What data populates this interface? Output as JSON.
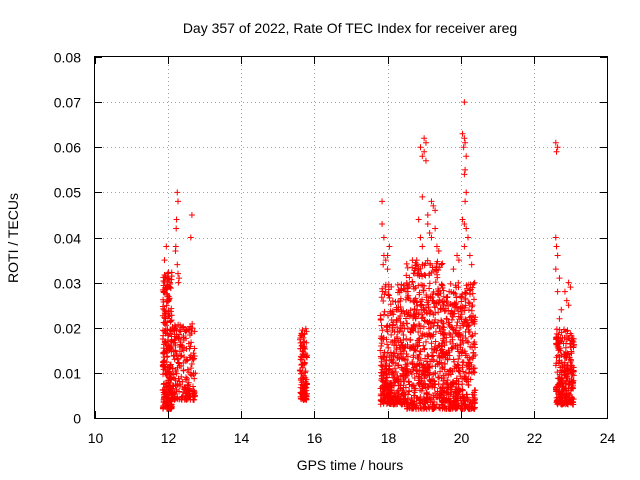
{
  "chart_data": {
    "type": "scatter",
    "title": "Day 357 of 2022, Rate Of TEC Index for receiver areg",
    "xlabel": "GPS time / hours",
    "ylabel": "ROTI / TECUs",
    "xlim": [
      10,
      24
    ],
    "ylim": [
      0,
      0.08
    ],
    "x_ticks": [
      "10",
      "12",
      "14",
      "16",
      "18",
      "20",
      "22",
      "24"
    ],
    "y_ticks": [
      "0",
      "0.01",
      "0.02",
      "0.03",
      "0.04",
      "0.05",
      "0.06",
      "0.07",
      "0.08"
    ],
    "grid": true,
    "marker": "+",
    "series_color": "#ff0000",
    "clusters": [
      {
        "x_start": 11.85,
        "x_end": 12.1,
        "y_min": 0.002,
        "y_max": 0.033,
        "count": 260
      },
      {
        "x_start": 12.1,
        "x_end": 12.75,
        "y_min": 0.004,
        "y_max": 0.021,
        "count": 200
      },
      {
        "x_start": 15.6,
        "x_end": 15.8,
        "y_min": 0.004,
        "y_max": 0.02,
        "count": 110
      },
      {
        "x_start": 17.8,
        "x_end": 18.5,
        "y_min": 0.003,
        "y_max": 0.03,
        "count": 380
      },
      {
        "x_start": 18.5,
        "x_end": 19.5,
        "y_min": 0.002,
        "y_max": 0.035,
        "count": 520
      },
      {
        "x_start": 19.5,
        "x_end": 20.4,
        "y_min": 0.002,
        "y_max": 0.03,
        "count": 460
      },
      {
        "x_start": 22.6,
        "x_end": 23.1,
        "y_min": 0.003,
        "y_max": 0.02,
        "count": 260
      }
    ],
    "points": [
      [
        11.9,
        0.035
      ],
      [
        11.95,
        0.038
      ],
      [
        12.0,
        0.031
      ],
      [
        12.05,
        0.03
      ],
      [
        11.9,
        0.028
      ],
      [
        12.25,
        0.05
      ],
      [
        12.27,
        0.048
      ],
      [
        12.23,
        0.044
      ],
      [
        12.22,
        0.042
      ],
      [
        12.21,
        0.038
      ],
      [
        12.2,
        0.037
      ],
      [
        12.25,
        0.034
      ],
      [
        12.27,
        0.032
      ],
      [
        12.65,
        0.045
      ],
      [
        12.62,
        0.04
      ],
      [
        12.3,
        0.031
      ],
      [
        12.28,
        0.03
      ],
      [
        17.85,
        0.048
      ],
      [
        17.85,
        0.043
      ],
      [
        17.9,
        0.04
      ],
      [
        17.9,
        0.036
      ],
      [
        17.95,
        0.035
      ],
      [
        17.88,
        0.034
      ],
      [
        18.0,
        0.036
      ],
      [
        18.05,
        0.038
      ],
      [
        18.0,
        0.033
      ],
      [
        18.9,
        0.06
      ],
      [
        18.95,
        0.058
      ],
      [
        19.0,
        0.062
      ],
      [
        19.05,
        0.061
      ],
      [
        19.0,
        0.059
      ],
      [
        19.05,
        0.057
      ],
      [
        18.95,
        0.049
      ],
      [
        19.2,
        0.048
      ],
      [
        19.25,
        0.047
      ],
      [
        19.3,
        0.046
      ],
      [
        19.1,
        0.045
      ],
      [
        19.3,
        0.042
      ],
      [
        19.2,
        0.04
      ],
      [
        18.85,
        0.044
      ],
      [
        18.9,
        0.04
      ],
      [
        18.95,
        0.038
      ],
      [
        19.1,
        0.043
      ],
      [
        19.15,
        0.041
      ],
      [
        19.35,
        0.038
      ],
      [
        19.4,
        0.037
      ],
      [
        20.1,
        0.07
      ],
      [
        20.05,
        0.063
      ],
      [
        20.1,
        0.062
      ],
      [
        20.12,
        0.061
      ],
      [
        20.08,
        0.06
      ],
      [
        20.15,
        0.058
      ],
      [
        20.12,
        0.055
      ],
      [
        20.1,
        0.054
      ],
      [
        20.15,
        0.05
      ],
      [
        20.12,
        0.048
      ],
      [
        20.05,
        0.044
      ],
      [
        20.1,
        0.043
      ],
      [
        20.15,
        0.042
      ],
      [
        20.2,
        0.04
      ],
      [
        20.1,
        0.038
      ],
      [
        20.25,
        0.036
      ],
      [
        20.3,
        0.034
      ],
      [
        19.9,
        0.036
      ],
      [
        19.95,
        0.035
      ],
      [
        19.8,
        0.033
      ],
      [
        22.6,
        0.061
      ],
      [
        22.65,
        0.06
      ],
      [
        22.62,
        0.059
      ],
      [
        22.6,
        0.04
      ],
      [
        22.62,
        0.038
      ],
      [
        22.65,
        0.036
      ],
      [
        22.6,
        0.033
      ],
      [
        22.7,
        0.031
      ],
      [
        22.65,
        0.028
      ],
      [
        22.85,
        0.028
      ],
      [
        22.95,
        0.03
      ],
      [
        23.0,
        0.029
      ],
      [
        22.9,
        0.026
      ],
      [
        22.95,
        0.025
      ],
      [
        22.75,
        0.024
      ],
      [
        22.7,
        0.022
      ]
    ]
  }
}
